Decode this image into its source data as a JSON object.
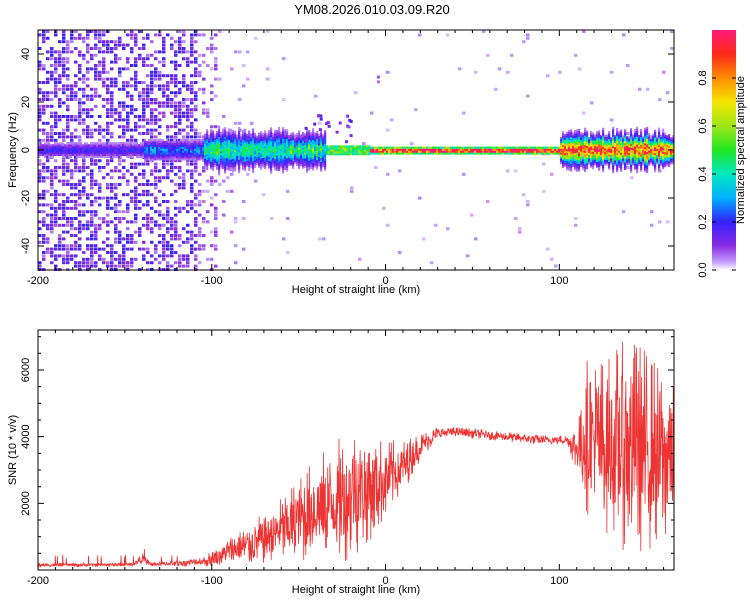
{
  "title": "YM08.2026.010.03.09.R20",
  "chart_data": [
    {
      "type": "heatmap",
      "xlabel": "Height of straight line (km)",
      "ylabel": "Frequency (Hz)",
      "xlim": [
        -200,
        166
      ],
      "ylim": [
        -50,
        50
      ],
      "x_ticks": [
        -200,
        -100,
        0,
        100
      ],
      "y_ticks": [
        -40,
        -20,
        0,
        20,
        40
      ],
      "colorbar": {
        "label": "Normalized spectral amplitude",
        "range": [
          0,
          1
        ],
        "ticks": [
          0.0,
          0.2,
          0.4,
          0.6,
          0.8
        ],
        "tick_labels": [
          "0.0",
          "0.2",
          "0.4",
          "0.6",
          "0.8"
        ]
      },
      "regions": [
        {
          "x_range": [
            -200,
            -100
          ],
          "y_range": [
            -50,
            50
          ],
          "amplitude": 0.1,
          "pattern": "scattered noise"
        },
        {
          "x_range": [
            -140,
            -35
          ],
          "y_range": [
            -5,
            5
          ],
          "amplitude": 0.35,
          "pattern": "broadband near 0 Hz"
        },
        {
          "x_range": [
            -35,
            166
          ],
          "y_range": [
            -2,
            2
          ],
          "amplitude": 0.95,
          "pattern": "narrow line at 0 Hz"
        },
        {
          "x_range": [
            100,
            166
          ],
          "y_range": [
            -6,
            6
          ],
          "amplitude": 0.3,
          "pattern": "broadening near 0 Hz"
        }
      ],
      "grid": false,
      "legend": "colorbar right"
    },
    {
      "type": "line",
      "xlabel": "Height of straight line (km)",
      "ylabel": "SNR (10 * v/v)",
      "xlim": [
        -200,
        166
      ],
      "ylim": [
        0,
        7200
      ],
      "x_ticks": [
        -200,
        -100,
        0,
        100
      ],
      "y_ticks": [
        2000,
        4000,
        6000
      ],
      "series": [
        {
          "color": "#ee3333",
          "x": [
            -200,
            -180,
            -160,
            -145,
            -140,
            -135,
            -120,
            -105,
            -100,
            -90,
            -80,
            -70,
            -60,
            -50,
            -40,
            -30,
            -20,
            -10,
            0,
            10,
            20,
            30,
            40,
            50,
            60,
            70,
            80,
            90,
            100,
            105,
            110,
            115,
            120,
            130,
            140,
            150,
            160,
            166
          ],
          "y": [
            150,
            150,
            160,
            170,
            350,
            170,
            200,
            260,
            320,
            550,
            700,
            950,
            1200,
            1500,
            1800,
            2000,
            2300,
            2500,
            2700,
            3100,
            3700,
            4100,
            4150,
            4100,
            4050,
            4000,
            3950,
            3900,
            3900,
            3900,
            3600,
            4200,
            3800,
            3700,
            3800,
            3600,
            3400,
            3500
          ],
          "spread": [
            60,
            60,
            60,
            60,
            150,
            60,
            100,
            150,
            250,
            450,
            600,
            800,
            1000,
            1300,
            1600,
            1800,
            2000,
            1700,
            1200,
            800,
            400,
            200,
            150,
            150,
            150,
            150,
            150,
            150,
            150,
            150,
            800,
            2400,
            2600,
            2900,
            3300,
            3100,
            2600,
            2500
          ]
        }
      ],
      "grid": false
    }
  ]
}
